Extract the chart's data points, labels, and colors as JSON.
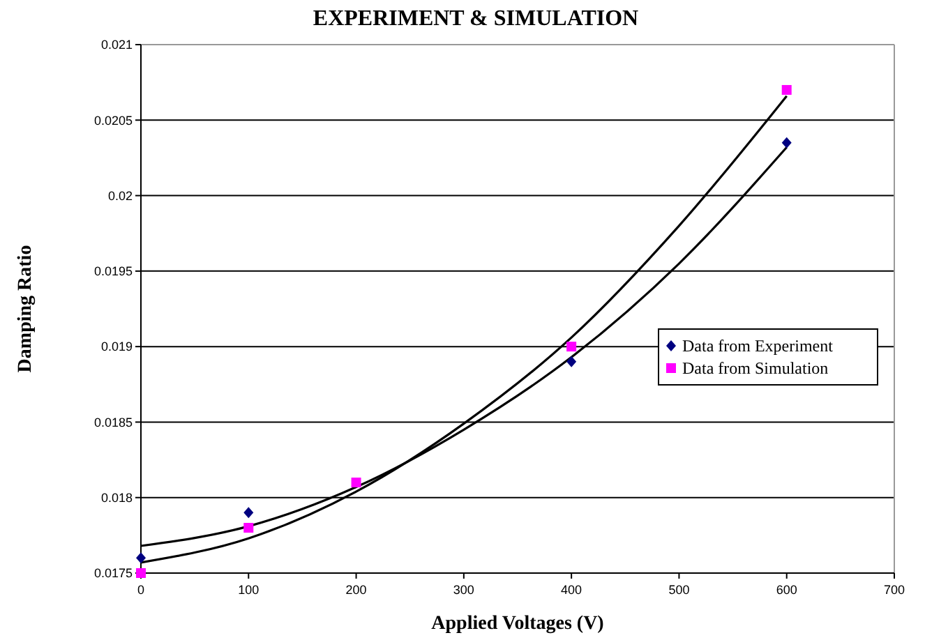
{
  "chart_data": {
    "type": "scatter",
    "title": "EXPERIMENT & SIMULATION",
    "xlabel": "Applied Voltages (V)",
    "ylabel": "Damping Ratio",
    "xlim": [
      0,
      700
    ],
    "xticks": [
      0,
      100,
      200,
      300,
      400,
      500,
      600,
      700
    ],
    "ylim": [
      0.0175,
      0.021
    ],
    "yticks": [
      0.0175,
      0.018,
      0.0185,
      0.019,
      0.0195,
      0.02,
      0.0205,
      0.021
    ],
    "grid": "y",
    "legend": "right",
    "series": [
      {
        "name": "Data from Experiment",
        "color": "#000080",
        "marker": "diamond",
        "x": [
          0,
          100,
          400,
          600
        ],
        "values": [
          0.0176,
          0.0179,
          0.0189,
          0.02035
        ]
      },
      {
        "name": "Data from Simulation",
        "color": "#ff00ff",
        "marker": "square",
        "x": [
          0,
          100,
          200,
          400,
          600
        ],
        "values": [
          0.0175,
          0.0178,
          0.0181,
          0.019,
          0.0207
        ]
      },
      {
        "type": "line",
        "color": "#000000",
        "x": [
          0,
          100,
          200,
          300,
          400,
          500,
          600
        ],
        "values": [
          0.01768,
          0.01781,
          0.01807,
          0.01845,
          0.01893,
          0.01955,
          0.02032
        ]
      },
      {
        "type": "line",
        "color": "#000000",
        "x": [
          0,
          100,
          200,
          300,
          400,
          500,
          600
        ],
        "values": [
          0.01757,
          0.01773,
          0.01804,
          0.01849,
          0.01906,
          0.0198,
          0.02066
        ]
      }
    ]
  }
}
